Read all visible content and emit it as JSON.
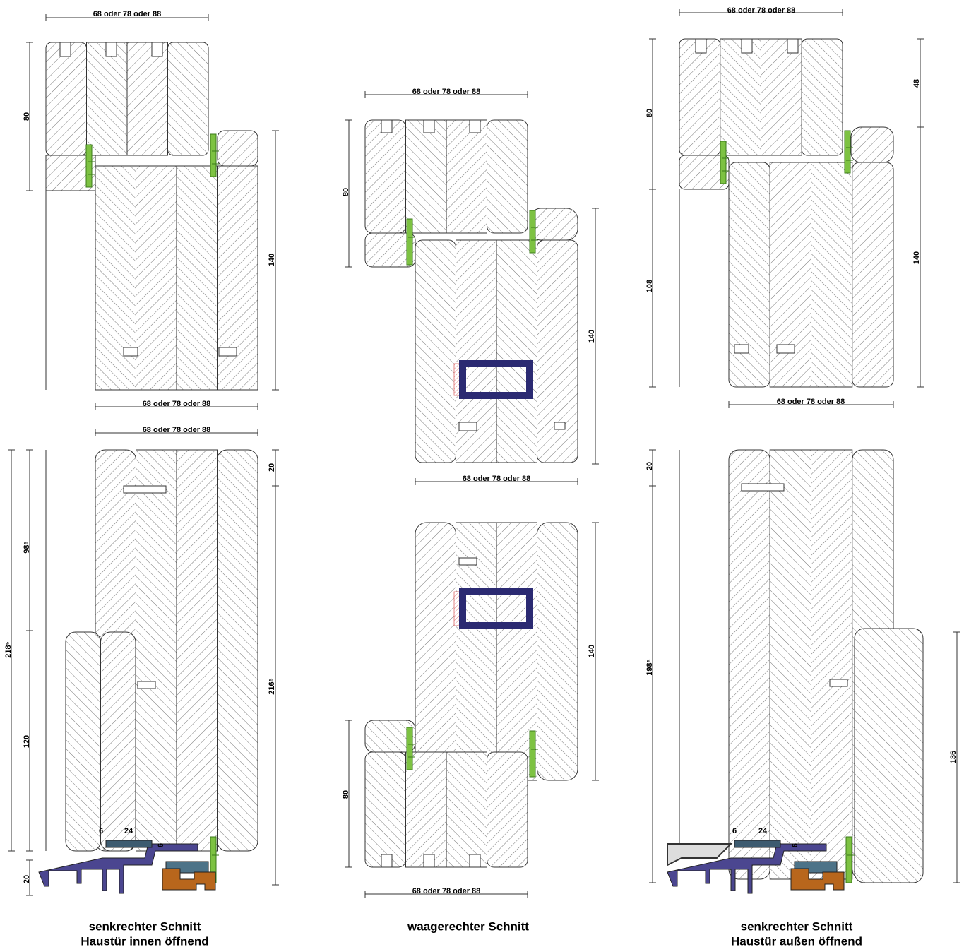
{
  "drawings": [
    {
      "caption": [
        "senkrechter Schnitt",
        "Haustür innen öffnend"
      ],
      "dimensions": [
        "68 oder 78 oder 88",
        "80",
        "140",
        "68 oder 78 oder 88",
        "68 oder 78 oder 88",
        "20",
        "98⁵",
        "218⁵",
        "216⁵",
        "120",
        "20",
        "6",
        "24",
        "6"
      ]
    },
    {
      "caption": [
        "waagerechter Schnitt"
      ],
      "dimensions": [
        "68 oder 78 oder 88",
        "80",
        "140",
        "68 oder 78 oder 88",
        "140",
        "80",
        "68 oder 78 oder 88"
      ]
    },
    {
      "caption": [
        "senkrechter Schnitt",
        "Haustür außen öffnend"
      ],
      "dimensions": [
        "68 oder 78 oder 88",
        "48",
        "80",
        "108",
        "140",
        "68 oder 78 oder 88",
        "20",
        "198⁵",
        "136",
        "6",
        "24",
        "6"
      ]
    }
  ]
}
